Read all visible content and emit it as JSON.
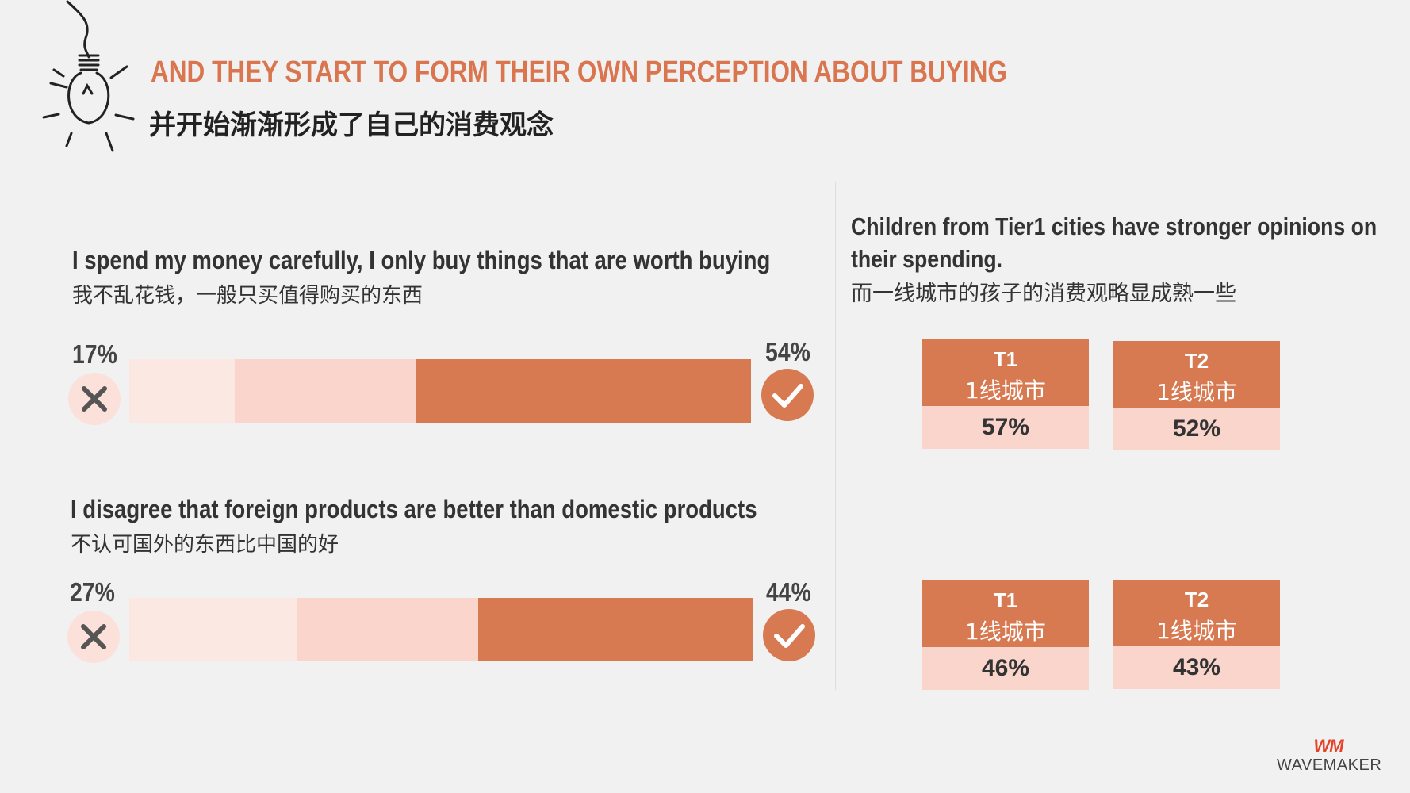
{
  "title_en": "AND THEY START TO FORM THEIR OWN PERCEPTION ABOUT BUYING",
  "title_cn": "并开始渐渐形成了自己的消费观念",
  "chart_data": [
    {
      "type": "bar",
      "question_en": "I spend my money carefully, I only buy things that are worth buying",
      "question_cn": "我不乱花钱，一般只买值得购买的东西",
      "disagree": 17,
      "neutral": 29,
      "agree": 54,
      "disagree_label": "17%",
      "agree_label": "54%"
    },
    {
      "type": "bar",
      "question_en": "I disagree that foreign products are better than domestic products",
      "question_cn": "不认可国外的东西比中国的好",
      "disagree": 27,
      "neutral": 29,
      "agree": 44,
      "disagree_label": "27%",
      "agree_label": "44%"
    }
  ],
  "side": {
    "line1": "Children from Tier1 cities have stronger opinions on",
    "line2": "their spending.",
    "cn": "而一线城市的孩子的消费观略显成熟一些"
  },
  "tiers": [
    [
      {
        "code": "T1",
        "city": "1线城市",
        "value": "57%"
      },
      {
        "code": "T2",
        "city": "1线城市",
        "value": "52%"
      }
    ],
    [
      {
        "code": "T1",
        "city": "1线城市",
        "value": "46%"
      },
      {
        "code": "T2",
        "city": "1线城市",
        "value": "43%"
      }
    ]
  ],
  "logo": {
    "mark": "WM",
    "name": "WAVEMAKER"
  },
  "colors": {
    "accent": "#d77a52",
    "neutral": "#f9d5cb",
    "negative": "#fce8e3"
  },
  "icons": {
    "disagree": "cross-icon",
    "agree": "check-icon",
    "decor": "light-bulb-icon"
  }
}
